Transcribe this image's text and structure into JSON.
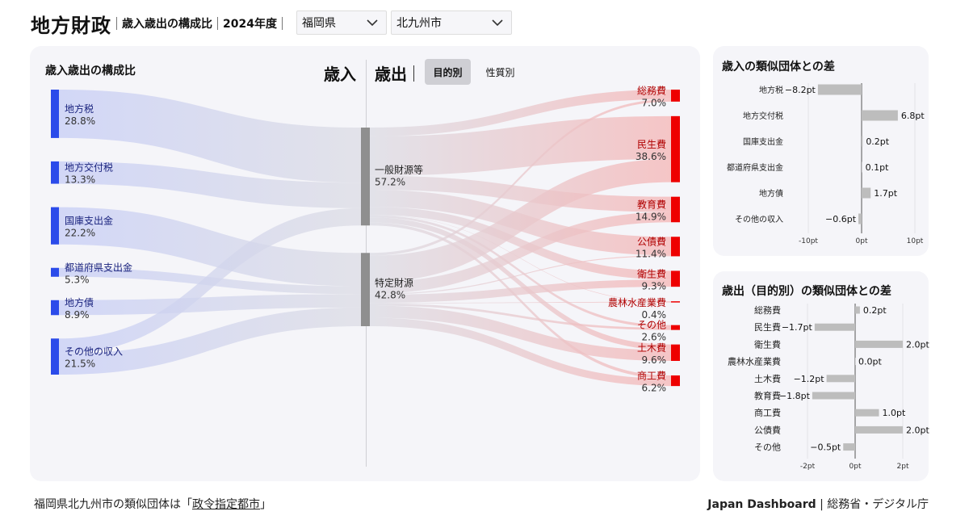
{
  "header": {
    "title": "地方財政",
    "subtitle": "歳入歳出の構成比",
    "year": "2024年度",
    "prefecture": "福岡県",
    "city": "北九州市"
  },
  "sankey_panel": {
    "title": "歳入歳出の構成比",
    "revenue_label": "歳入",
    "expenditure_label": "歳出",
    "tabs": [
      "目的別",
      "性質別"
    ]
  },
  "revenue_card": {
    "title": "歳入の類似団体との差"
  },
  "expenditure_card": {
    "title": "歳出（目的別）の類似団体との差"
  },
  "footer": {
    "note_prefix": "福岡県北九州市の類似団体は「",
    "note_link": "政令指定都市",
    "note_suffix": "」",
    "brand": "Japan Dashboard",
    "brand_suffix": " | 総務省・デジタル庁"
  },
  "colors": {
    "revenue": "#2b4bea",
    "expenditure": "#ee0000",
    "middle": "#8f8f8f",
    "diffbar": "#bdbdbd"
  },
  "chart_data": [
    {
      "type": "sankey",
      "sources": [
        {
          "name": "地方税",
          "value": "28.8%"
        },
        {
          "name": "地方交付税",
          "value": "13.3%"
        },
        {
          "name": "国庫支出金",
          "value": "22.2%"
        },
        {
          "name": "都道府県支出金",
          "value": "5.3%"
        },
        {
          "name": "地方債",
          "value": "8.9%"
        },
        {
          "name": "その他の収入",
          "value": "21.5%"
        }
      ],
      "middle": [
        {
          "name": "一般財源等",
          "value": "57.2%"
        },
        {
          "name": "特定財源",
          "value": "42.8%"
        }
      ],
      "targets": [
        {
          "name": "総務費",
          "value": "7.0%"
        },
        {
          "name": "民生費",
          "value": "38.6%"
        },
        {
          "name": "教育費",
          "value": "14.9%"
        },
        {
          "name": "公債費",
          "value": "11.4%"
        },
        {
          "name": "衛生費",
          "value": "9.3%"
        },
        {
          "name": "農林水産業費",
          "value": "0.4%"
        },
        {
          "name": "その他",
          "value": "2.6%"
        },
        {
          "name": "土木費",
          "value": "9.6%"
        },
        {
          "name": "商工費",
          "value": "6.2%"
        }
      ]
    },
    {
      "type": "bar",
      "categories": [
        "地方税",
        "地方交付税",
        "国庫支出金",
        "都道府県支出金",
        "地方債",
        "その他の収入"
      ],
      "values": [
        -8.2,
        6.8,
        0.2,
        0.1,
        1.7,
        -0.6
      ],
      "value_labels": [
        "−8.2pt",
        "6.8pt",
        "0.2pt",
        "0.1pt",
        "1.7pt",
        "−0.6pt"
      ],
      "xlim": [
        -10,
        10
      ],
      "xticks": [
        "-10pt",
        "0pt",
        "10pt"
      ]
    },
    {
      "type": "bar",
      "categories": [
        "総務費",
        "民生費",
        "衛生費",
        "農林水産業費",
        "土木費",
        "教育費",
        "商工費",
        "公債費",
        "その他"
      ],
      "values": [
        0.2,
        -1.7,
        2.0,
        0.0,
        -1.2,
        -1.8,
        1.0,
        2.0,
        -0.5
      ],
      "value_labels": [
        "0.2pt",
        "−1.7pt",
        "2.0pt",
        "0.0pt",
        "−1.2pt",
        "−1.8pt",
        "1.0pt",
        "2.0pt",
        "−0.5pt"
      ],
      "xlim": [
        -2,
        2
      ],
      "xticks": [
        "-2pt",
        "0pt",
        "2pt"
      ]
    }
  ]
}
